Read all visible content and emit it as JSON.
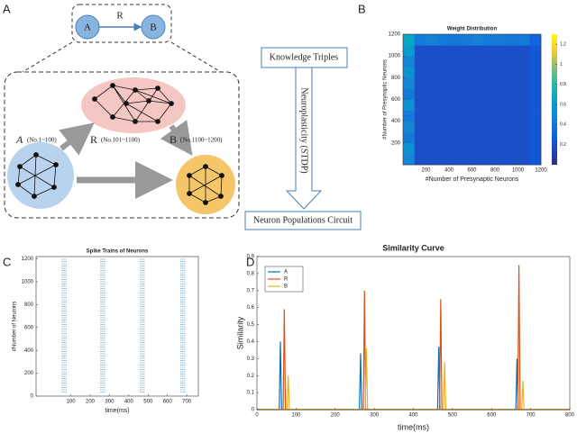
{
  "panel_labels": [
    "A",
    "B",
    "C",
    "D"
  ],
  "diagram": {
    "top": {
      "source": "A",
      "target": "B",
      "relation": "R"
    },
    "populations": [
      {
        "name": "A",
        "range": "(No.1~100)"
      },
      {
        "name": "R",
        "range": "(No.101~1100)"
      },
      {
        "name": "B",
        "range": "(No.1100~1200)"
      }
    ],
    "flow": {
      "start": "Knowledge Triples",
      "arrow": "Neuroplasticity (STDP)",
      "end": "Neuron Populations Circuit"
    }
  },
  "chart_data": [
    {
      "type": "heatmap",
      "title": "Weight Distribution",
      "xlabel": "#Number of Presynaptic Neurons",
      "ylabel": "#Number of Presynaptic Neurons",
      "xlim": [
        0,
        1200
      ],
      "ylim": [
        0,
        1200
      ],
      "xticks": [
        200,
        400,
        600,
        800,
        1000,
        1200
      ],
      "yticks": [
        200,
        400,
        600,
        800,
        1000,
        1200
      ],
      "values": [
        [
          0.35,
          0.12,
          0.12,
          0.12,
          0.12,
          0.12,
          0.12,
          0.12,
          0.12,
          0.12,
          0.12,
          0.15
        ],
        [
          0.4,
          0.12,
          0.12,
          0.12,
          0.12,
          0.12,
          0.12,
          0.12,
          0.12,
          0.12,
          0.12,
          0.15
        ],
        [
          0.3,
          0.12,
          0.12,
          0.12,
          0.12,
          0.12,
          0.12,
          0.12,
          0.12,
          0.12,
          0.12,
          0.15
        ],
        [
          0.35,
          0.12,
          0.12,
          0.12,
          0.12,
          0.12,
          0.12,
          0.12,
          0.12,
          0.12,
          0.12,
          0.15
        ],
        [
          0.3,
          0.12,
          0.12,
          0.12,
          0.12,
          0.12,
          0.12,
          0.12,
          0.12,
          0.12,
          0.12,
          0.15
        ],
        [
          0.4,
          0.12,
          0.12,
          0.12,
          0.12,
          0.12,
          0.12,
          0.12,
          0.12,
          0.12,
          0.12,
          0.15
        ],
        [
          0.3,
          0.12,
          0.12,
          0.12,
          0.12,
          0.12,
          0.12,
          0.12,
          0.12,
          0.12,
          0.12,
          0.15
        ],
        [
          0.35,
          0.12,
          0.12,
          0.12,
          0.12,
          0.12,
          0.12,
          0.12,
          0.12,
          0.12,
          0.12,
          0.15
        ],
        [
          0.4,
          0.12,
          0.12,
          0.12,
          0.12,
          0.12,
          0.12,
          0.12,
          0.12,
          0.12,
          0.12,
          0.15
        ],
        [
          0.35,
          0.12,
          0.12,
          0.12,
          0.12,
          0.12,
          0.12,
          0.12,
          0.12,
          0.12,
          0.12,
          0.15
        ],
        [
          0.45,
          0.12,
          0.12,
          0.12,
          0.12,
          0.12,
          0.12,
          0.12,
          0.12,
          0.12,
          0.12,
          0.15
        ],
        [
          0.5,
          0.3,
          0.32,
          0.3,
          0.28,
          0.3,
          0.32,
          0.3,
          0.3,
          0.28,
          0.3,
          0.2
        ]
      ],
      "colorbar": {
        "lim": [
          0,
          1.3
        ],
        "ticks": [
          0.2,
          0.4,
          0.6,
          0.8,
          1,
          1.2
        ]
      }
    },
    {
      "type": "raster",
      "title": "Spike Trains of Neurons",
      "xlabel": "time(ms)",
      "ylabel": "#Number of Neurons",
      "xlim": [
        -80,
        760
      ],
      "ylim": [
        0,
        1220
      ],
      "xticks": [
        100,
        200,
        300,
        400,
        500,
        600,
        700
      ],
      "yticks": [
        0,
        200,
        400,
        600,
        800,
        1000,
        1200
      ],
      "bursts": [
        65,
        265,
        470,
        680
      ],
      "color": "#2b7bba"
    },
    {
      "type": "line",
      "title": "Similarity Curve",
      "xlabel": "time(ms)",
      "ylabel": "Similarity",
      "xlim": [
        0,
        800
      ],
      "ylim": [
        0,
        0.9
      ],
      "xticks": [
        0,
        100,
        200,
        300,
        400,
        500,
        600,
        700,
        800
      ],
      "yticks": [
        0,
        0.1,
        0.2,
        0.3,
        0.4,
        0.5,
        0.6,
        0.7,
        0.8,
        0.9
      ],
      "legend": "upper left",
      "series": [
        {
          "name": "A",
          "color": "#0072bd",
          "x": [
            0,
            57,
            60,
            63,
            262,
            265,
            268,
            462,
            465,
            468,
            662,
            665,
            668,
            800
          ],
          "values": [
            0,
            0,
            0.4,
            0,
            0,
            0.33,
            0,
            0,
            0.37,
            0,
            0,
            0.3,
            0,
            0
          ]
        },
        {
          "name": "R",
          "color": "#d95319",
          "x": [
            0,
            67,
            70,
            73,
            272,
            275,
            278,
            467,
            470,
            473,
            667,
            670,
            673,
            800
          ],
          "values": [
            0,
            0,
            0.59,
            0,
            0,
            0.7,
            0,
            0,
            0.65,
            0,
            0,
            0.85,
            0,
            0
          ]
        },
        {
          "name": "B",
          "color": "#edb120",
          "x": [
            0,
            77,
            80,
            83,
            277,
            280,
            283,
            477,
            480,
            483,
            677,
            680,
            683,
            800
          ],
          "values": [
            0,
            0,
            0.2,
            0,
            0,
            0.36,
            0,
            0,
            0.28,
            0,
            0,
            0.17,
            0,
            0
          ]
        }
      ]
    }
  ]
}
